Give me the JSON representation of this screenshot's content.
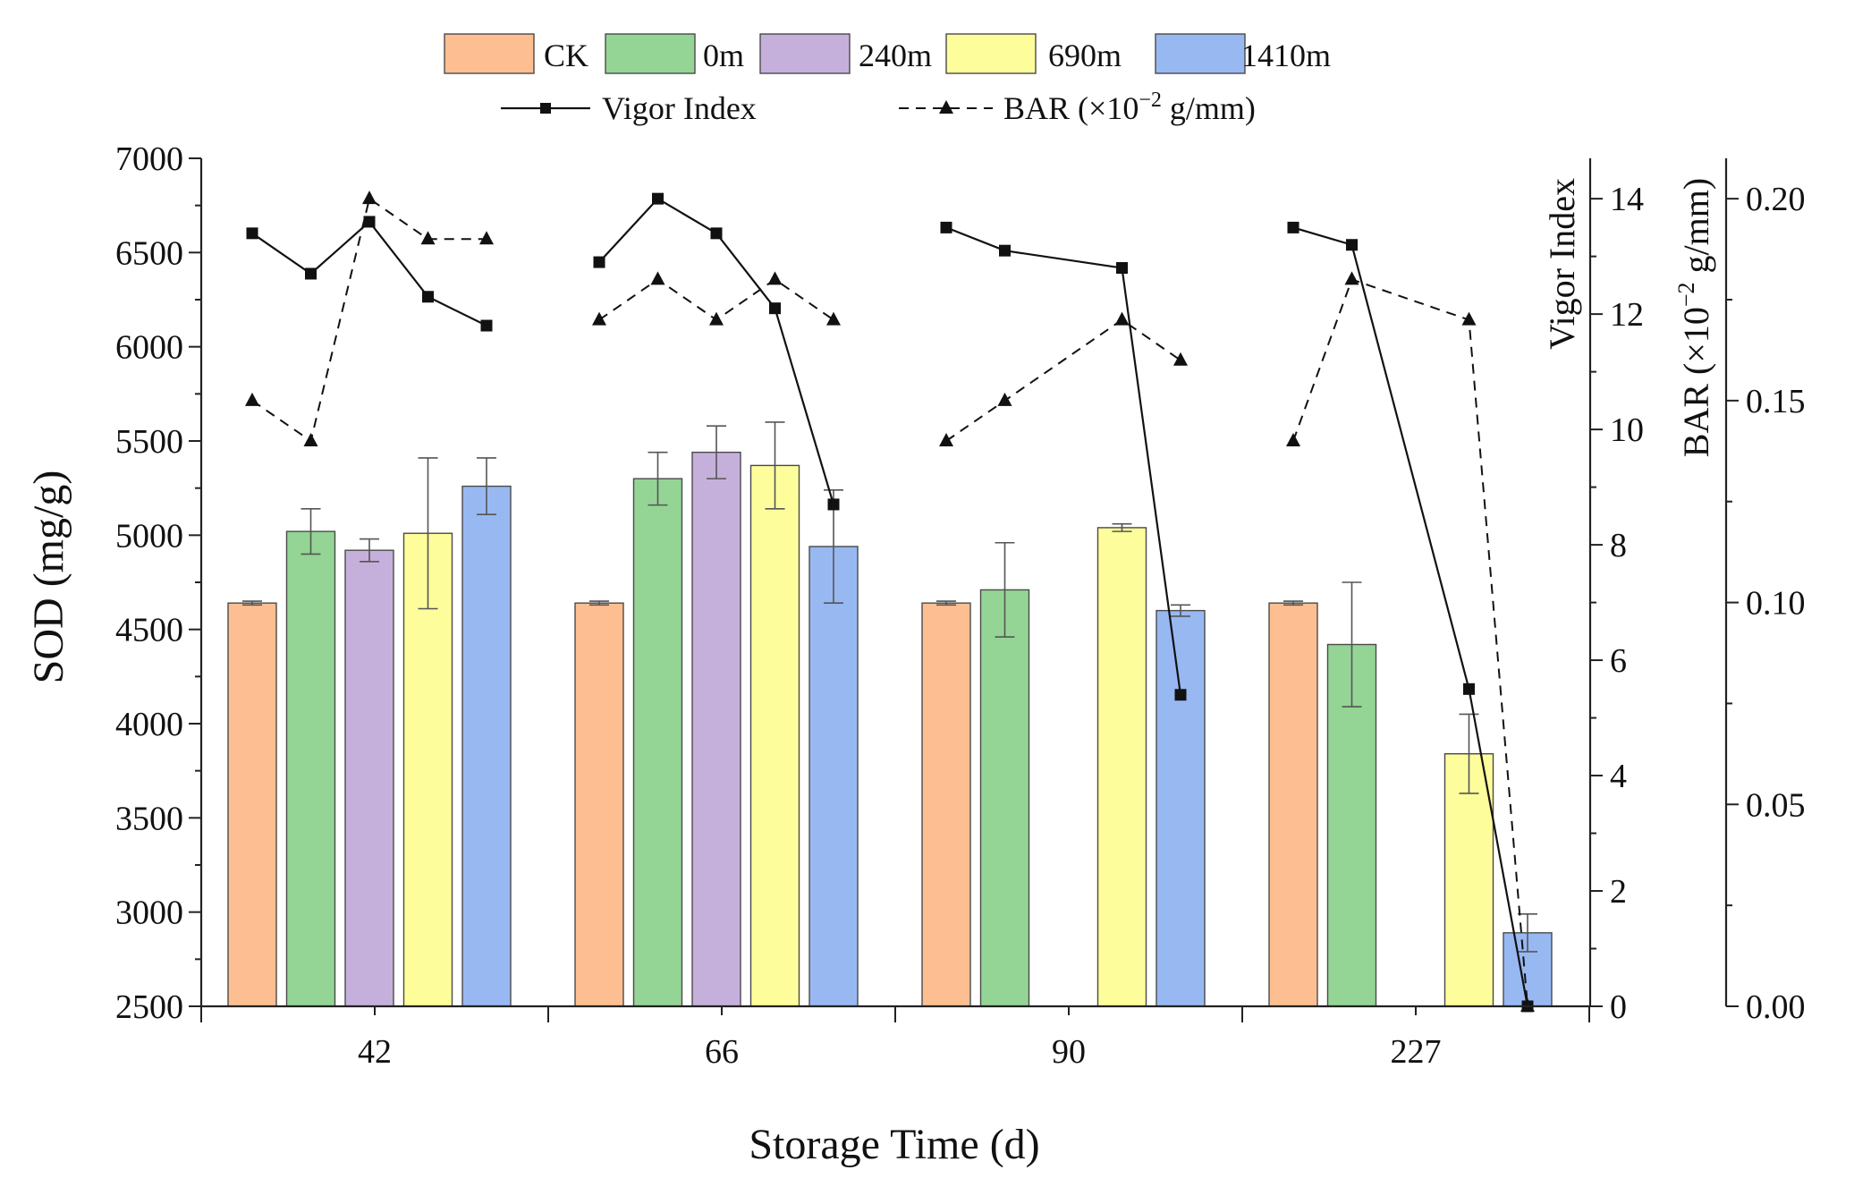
{
  "chart_data": {
    "type": "bar",
    "xlabel": "Storage Time (d)",
    "ylabel": "SOD (mg/g)",
    "categories": [
      "42",
      "66",
      "90",
      "227"
    ],
    "ylim": [
      2500,
      7000
    ],
    "yticks": [
      "2500",
      "3000",
      "3500",
      "4000",
      "4500",
      "5000",
      "5500",
      "6000",
      "6500",
      "7000"
    ],
    "series": [
      {
        "name": "CK",
        "color": "#fdbf91",
        "values": [
          4640,
          4640,
          4640,
          4640
        ],
        "errors": [
          10,
          10,
          10,
          10
        ],
        "positions": [
          0,
          0,
          0,
          0
        ]
      },
      {
        "name": "0m",
        "color": "#94d595",
        "values": [
          5020,
          5300,
          4710,
          4420
        ],
        "errors": [
          120,
          140,
          250,
          330
        ],
        "positions": [
          1,
          1,
          1,
          1
        ]
      },
      {
        "name": "240m",
        "color": "#c5b0dc",
        "values": [
          4920,
          5440,
          null,
          null
        ],
        "errors": [
          60,
          140,
          null,
          null
        ],
        "positions": [
          2,
          2,
          2,
          2
        ]
      },
      {
        "name": "690m",
        "color": "#fdfd9c",
        "values": [
          5010,
          5370,
          5040,
          3840
        ],
        "errors": [
          400,
          230,
          20,
          210
        ],
        "positions": [
          3,
          3,
          3,
          3
        ]
      },
      {
        "name": "1410m",
        "color": "#98b8f2",
        "values": [
          5260,
          4940,
          4600,
          2890
        ],
        "errors": [
          150,
          300,
          30,
          100
        ],
        "positions": [
          4,
          4,
          4,
          4
        ]
      }
    ],
    "lines": [
      {
        "name": "Vigor Index",
        "axis": "right1",
        "style": "solid",
        "marker": "square",
        "segments": [
          {
            "group": 0,
            "positions": [
              0,
              1,
              2,
              3,
              4
            ],
            "values": [
              13.4,
              12.7,
              13.6,
              12.3,
              11.8
            ]
          },
          {
            "group": 1,
            "positions": [
              0,
              1,
              2,
              3,
              4
            ],
            "values": [
              12.9,
              14.0,
              13.4,
              12.1,
              8.7
            ]
          },
          {
            "group": 2,
            "positions": [
              0,
              1,
              3,
              4
            ],
            "values": [
              13.5,
              13.1,
              12.8,
              5.4
            ]
          },
          {
            "group": 3,
            "positions": [
              0,
              1,
              3,
              4
            ],
            "values": [
              13.5,
              13.2,
              5.5,
              0.0
            ]
          }
        ]
      },
      {
        "name": "BAR (×10⁻² g/mm)",
        "axis": "right2",
        "style": "dashed",
        "marker": "triangle",
        "segments": [
          {
            "group": 0,
            "positions": [
              0,
              1,
              2,
              3,
              4
            ],
            "values": [
              0.15,
              0.14,
              0.2,
              0.19,
              0.19
            ]
          },
          {
            "group": 1,
            "positions": [
              0,
              1,
              2,
              3,
              4
            ],
            "values": [
              0.17,
              0.18,
              0.17,
              0.18,
              0.17
            ]
          },
          {
            "group": 2,
            "positions": [
              0,
              1,
              3,
              4
            ],
            "values": [
              0.14,
              0.15,
              0.17,
              0.16
            ]
          },
          {
            "group": 3,
            "positions": [
              0,
              1,
              3,
              4
            ],
            "values": [
              0.14,
              0.18,
              0.17,
              0.0
            ]
          }
        ]
      }
    ],
    "right_axis_1": {
      "label": "Vigor Index",
      "ylim": [
        0,
        14.7
      ],
      "ticks": [
        "0",
        "2",
        "4",
        "6",
        "8",
        "10",
        "12",
        "14"
      ]
    },
    "right_axis_2": {
      "label_main": "BAR (×10",
      "label_exp": "−2",
      "label_unit": " g/mm)",
      "ylim": [
        0,
        0.21
      ],
      "ticks": [
        "0.00",
        "0.05",
        "0.10",
        "0.15",
        "0.20"
      ]
    },
    "legend": {
      "bar_entries": [
        "CK",
        "0m",
        "240m",
        "690m",
        "1410m"
      ],
      "line_entries": [
        {
          "label": "Vigor Index"
        },
        {
          "label_main": "BAR (×10",
          "label_exp": "−2",
          "label_unit": " g/mm)"
        }
      ]
    }
  }
}
